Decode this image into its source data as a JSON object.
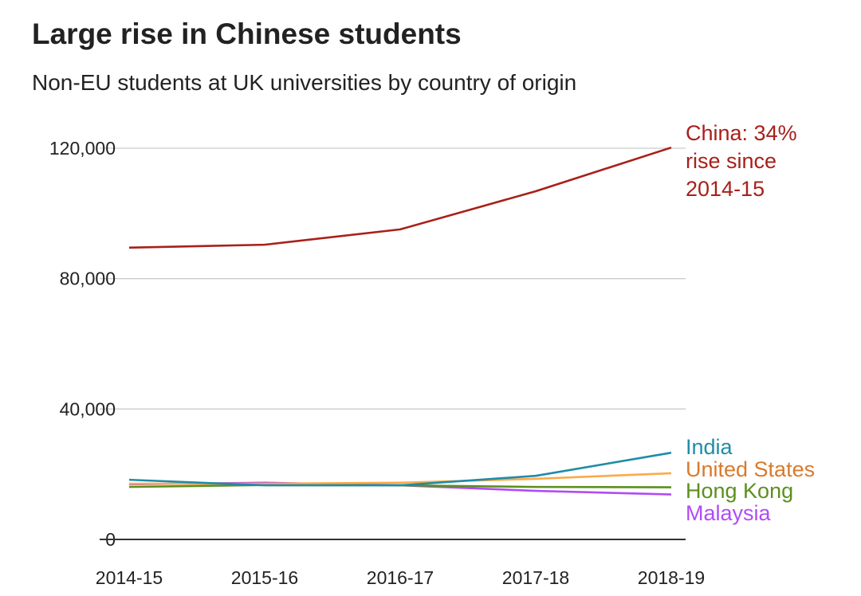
{
  "title": "Large rise in Chinese students",
  "subtitle": "Non-EU students at UK universities by country of origin",
  "chart_data": {
    "type": "line",
    "title": "Large rise in Chinese students",
    "subtitle": "Non-EU students at UK universities by country of origin",
    "xlabel": "",
    "ylabel": "",
    "categories": [
      "2014-15",
      "2015-16",
      "2016-17",
      "2017-18",
      "2018-19"
    ],
    "ylim": [
      0,
      120000
    ],
    "yticks": [
      0,
      40000,
      80000,
      120000
    ],
    "ytick_labels": [
      "0",
      "40,000",
      "80,000",
      "120,000"
    ],
    "grid": "horizontal",
    "legend": "direct labels at right",
    "series": [
      {
        "name": "China",
        "label": [
          "China: 34%",
          "rise since",
          "2014-15"
        ],
        "color": "#a8201a",
        "values": [
          89500,
          90400,
          95100,
          106800,
          120200
        ]
      },
      {
        "name": "India",
        "label": [
          "India"
        ],
        "color": "#1f8ca8",
        "values": [
          18300,
          16600,
          16600,
          19500,
          26600
        ]
      },
      {
        "name": "United States",
        "label": [
          "United States"
        ],
        "color": "#fbaa48",
        "label_color": "#d97a2b",
        "values": [
          17100,
          17100,
          17400,
          18600,
          20300
        ]
      },
      {
        "name": "Hong Kong",
        "label": [
          "Hong Kong"
        ],
        "color": "#5c8f1f",
        "values": [
          16100,
          16700,
          16600,
          16100,
          16000
        ]
      },
      {
        "name": "Malaysia",
        "label": [
          "Malaysia"
        ],
        "color": "#b04cf5",
        "values": [
          16900,
          17400,
          16600,
          14900,
          13800
        ]
      }
    ]
  }
}
